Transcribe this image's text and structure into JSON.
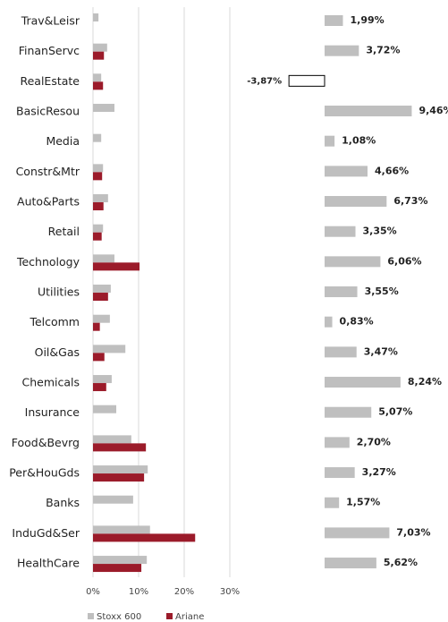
{
  "chart_data": [
    {
      "type": "grouped_hbar",
      "categories": [
        "Trav&Leisr",
        "FinanServc",
        "RealEstate",
        "BasicResou",
        "Media",
        "Constr&Mtr",
        "Auto&Parts",
        "Retail",
        "Technology",
        "Utilities",
        "Telcomm",
        "Oil&Gas",
        "Chemicals",
        "Insurance",
        "Food&Bevrg",
        "Per&HouGds",
        "Banks",
        "InduGd&Ser",
        "HealthCare"
      ],
      "series": [
        {
          "name": "Stoxx 600",
          "color": "#bfbfbf",
          "values": [
            1.2,
            3.1,
            1.8,
            4.7,
            1.8,
            2.2,
            3.3,
            2.2,
            4.7,
            3.9,
            3.7,
            7.1,
            4.1,
            5.1,
            8.4,
            12.0,
            8.8,
            12.5,
            11.8
          ]
        },
        {
          "name": "Ariane",
          "color": "#9b1b2a",
          "values": [
            null,
            2.4,
            2.2,
            null,
            null,
            2.0,
            2.3,
            1.9,
            10.2,
            3.3,
            1.5,
            2.5,
            2.9,
            null,
            11.6,
            11.2,
            null,
            22.4,
            10.6
          ]
        }
      ],
      "xlim": [
        0,
        30
      ],
      "xticks": [
        {
          "value": 0,
          "label": "0%"
        },
        {
          "value": 10,
          "label": "10%"
        },
        {
          "value": 20,
          "label": "20%"
        },
        {
          "value": 30,
          "label": "30%"
        }
      ],
      "grid": true,
      "legend": "bottom"
    },
    {
      "type": "hbar",
      "values": [
        1.99,
        3.72,
        -3.87,
        9.46,
        1.08,
        4.66,
        6.73,
        3.35,
        6.06,
        3.55,
        0.83,
        3.47,
        8.24,
        5.07,
        2.7,
        3.27,
        1.57,
        7.03,
        5.62
      ],
      "value_labels": [
        "1,99%",
        "3,72%",
        "-3,87%",
        "9,46%",
        "1,08%",
        "4,66%",
        "6,73%",
        "3,35%",
        "6,06%",
        "3,55%",
        "0,83%",
        "3,47%",
        "8,24%",
        "5,07%",
        "2,70%",
        "3,27%",
        "1,57%",
        "7,03%",
        "5,62%"
      ],
      "color": "#bfbfbf",
      "negative_color": "#ffffff"
    }
  ]
}
